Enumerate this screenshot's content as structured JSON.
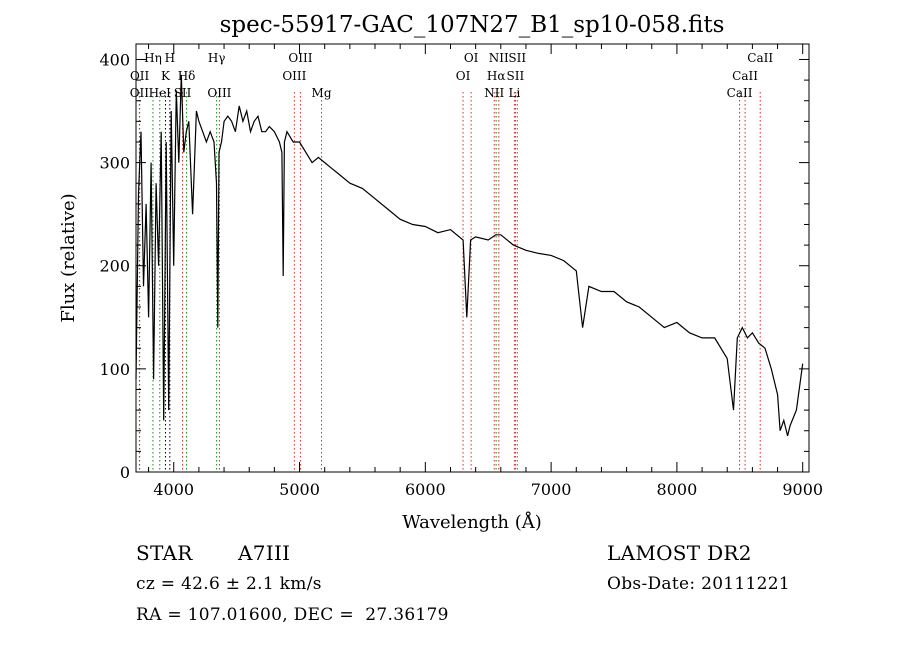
{
  "chart_data": {
    "type": "line",
    "title": "spec-55917-GAC_107N27_B1_sp10-058.fits",
    "xlabel": "Wavelength (Å)",
    "ylabel": "Flux (relative)",
    "xlim": [
      3700,
      9050
    ],
    "ylim": [
      0,
      415
    ],
    "xticks": [
      4000,
      5000,
      6000,
      7000,
      8000,
      9000
    ],
    "yticks": [
      0,
      100,
      200,
      300,
      400
    ],
    "grid": false,
    "series": [
      {
        "x": [
          3700,
          3720,
          3740,
          3760,
          3780,
          3800,
          3820,
          3840,
          3860,
          3880,
          3900,
          3920,
          3940,
          3960,
          3980,
          4000,
          4020,
          4040,
          4060,
          4080,
          4100,
          4120,
          4150,
          4180,
          4200,
          4230,
          4260,
          4290,
          4320,
          4340,
          4350,
          4360,
          4380,
          4400,
          4430,
          4460,
          4490,
          4520,
          4550,
          4580,
          4610,
          4640,
          4670,
          4700,
          4730,
          4760,
          4800,
          4840,
          4860,
          4870,
          4880,
          4900,
          4950,
          5000,
          5050,
          5100,
          5150,
          5200,
          5250,
          5300,
          5400,
          5500,
          5600,
          5700,
          5800,
          5900,
          6000,
          6100,
          6200,
          6300,
          6330,
          6360,
          6400,
          6500,
          6560,
          6600,
          6700,
          6800,
          6900,
          7000,
          7100,
          7200,
          7250,
          7300,
          7400,
          7500,
          7600,
          7700,
          7800,
          7900,
          8000,
          8100,
          8200,
          8300,
          8400,
          8450,
          8480,
          8520,
          8560,
          8600,
          8650,
          8700,
          8750,
          8800,
          8820,
          8850,
          8880,
          8900,
          8950,
          9000
        ],
        "values": [
          90,
          270,
          330,
          180,
          260,
          150,
          300,
          90,
          280,
          200,
          330,
          50,
          320,
          60,
          350,
          200,
          370,
          300,
          385,
          310,
          330,
          340,
          250,
          350,
          340,
          330,
          320,
          330,
          320,
          280,
          140,
          310,
          320,
          340,
          345,
          340,
          330,
          355,
          340,
          350,
          330,
          340,
          345,
          330,
          330,
          335,
          330,
          320,
          310,
          190,
          320,
          330,
          320,
          320,
          310,
          300,
          305,
          300,
          295,
          290,
          280,
          275,
          265,
          255,
          245,
          240,
          238,
          232,
          235,
          225,
          150,
          225,
          228,
          225,
          230,
          230,
          220,
          215,
          212,
          210,
          205,
          195,
          140,
          180,
          175,
          175,
          165,
          160,
          150,
          140,
          145,
          135,
          130,
          130,
          110,
          60,
          130,
          140,
          130,
          135,
          125,
          120,
          100,
          75,
          40,
          50,
          35,
          45,
          60,
          105
        ]
      }
    ],
    "lines": [
      {
        "label": "OII",
        "wl": 3727,
        "row": 3,
        "color": "#1a8a1a"
      },
      {
        "label": "OII",
        "wl": 3729,
        "row": 2,
        "color": "#c83232"
      },
      {
        "label": "Hη",
        "wl": 3835,
        "row": 1,
        "color": "#1a8a1a"
      },
      {
        "label": "HeI",
        "wl": 3889,
        "row": 3,
        "color": "#1a8a1a"
      },
      {
        "label": "K",
        "wl": 3934,
        "row": 2,
        "color": "#000000"
      },
      {
        "label": "H",
        "wl": 3969,
        "row": 1,
        "color": "#000000"
      },
      {
        "label": "SII",
        "wl": 4070,
        "row": 3,
        "color": "#c83232"
      },
      {
        "label": "Hδ",
        "wl": 4102,
        "row": 2,
        "color": "#1a8a1a"
      },
      {
        "label": "Hγ",
        "wl": 4341,
        "row": 1,
        "color": "#1a8a1a"
      },
      {
        "label": "OIII",
        "wl": 4363,
        "row": 3,
        "color": "#c83232"
      },
      {
        "label": "OIII",
        "wl": 4959,
        "row": 2,
        "color": "#c83232"
      },
      {
        "label": "OIII",
        "wl": 5007,
        "row": 1,
        "color": "#c83232"
      },
      {
        "label": "Mg",
        "wl": 5175,
        "row": 3,
        "color": "#c83232"
      },
      {
        "label": "OI",
        "wl": 6300,
        "row": 2,
        "color": "#c83232"
      },
      {
        "label": "OI",
        "wl": 6364,
        "row": 1,
        "color": "#c83232"
      },
      {
        "label": "NII",
        "wl": 6548,
        "row": 3,
        "color": "#c83232"
      },
      {
        "label": "Hα",
        "wl": 6563,
        "row": 2,
        "color": "#1a8a1a"
      },
      {
        "label": "NII",
        "wl": 6584,
        "row": 1,
        "color": "#c83232"
      },
      {
        "label": "Li",
        "wl": 6708,
        "row": 3,
        "color": "#c83232"
      },
      {
        "label": "SII",
        "wl": 6716,
        "row": 2,
        "color": "#c83232"
      },
      {
        "label": "SII",
        "wl": 6731,
        "row": 1,
        "color": "#c83232"
      },
      {
        "label": "CaII",
        "wl": 8498,
        "row": 3,
        "color": "#c83232"
      },
      {
        "label": "CaII",
        "wl": 8542,
        "row": 2,
        "color": "#c83232"
      },
      {
        "label": "CaII",
        "wl": 8662,
        "row": 1,
        "color": "#c83232"
      }
    ]
  },
  "info": {
    "object_class": "STAR",
    "subclass": "A7III",
    "survey": "LAMOST DR2",
    "cz": "cz = 42.6 ± 2.1 km/s",
    "obs_date": "Obs-Date: 20111221",
    "coords": "RA = 107.01600, DEC =  27.36179"
  }
}
